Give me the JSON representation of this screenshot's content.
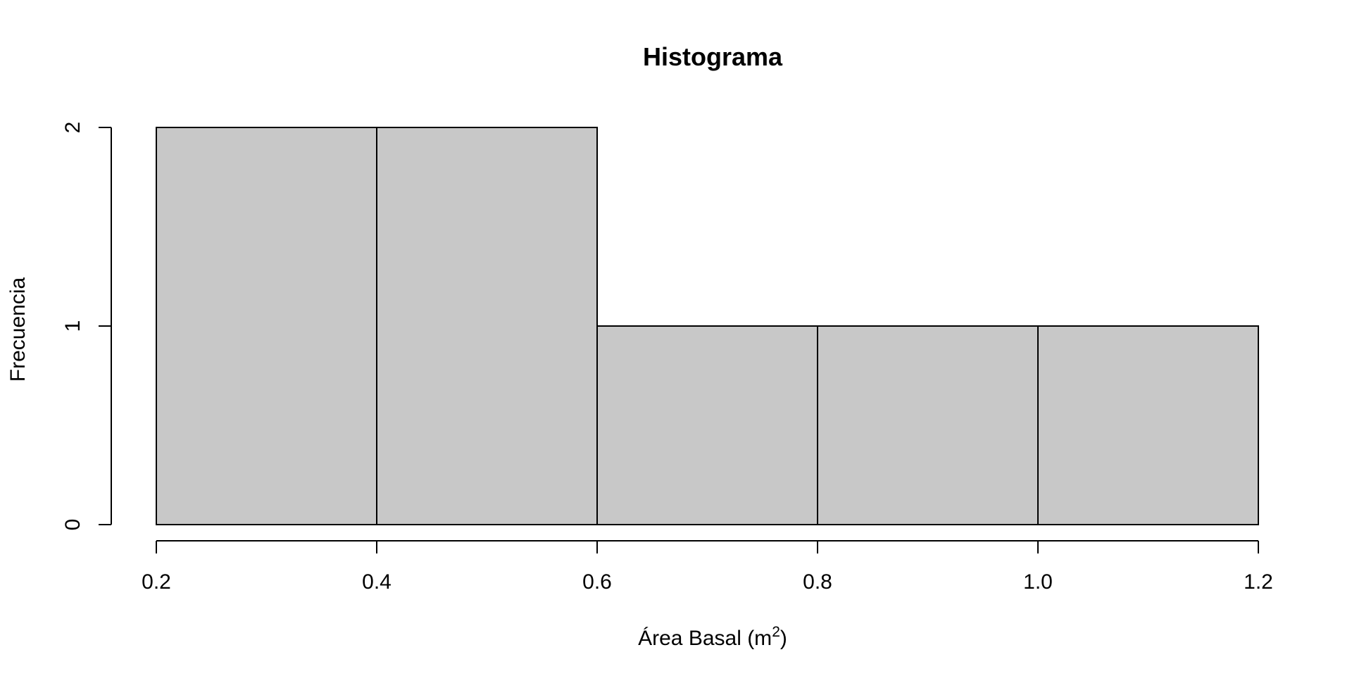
{
  "chart_data": {
    "type": "bar",
    "title": "Histograma",
    "xlabel": {
      "main": "Área Basal (m",
      "superscript": "2",
      "close": ")"
    },
    "ylabel": "Frecuencia",
    "bins": [
      {
        "start": 0.2,
        "end": 0.4,
        "count": 2
      },
      {
        "start": 0.4,
        "end": 0.6,
        "count": 2
      },
      {
        "start": 0.6,
        "end": 0.8,
        "count": 1
      },
      {
        "start": 0.8,
        "end": 1.0,
        "count": 1
      },
      {
        "start": 1.0,
        "end": 1.2,
        "count": 1
      }
    ],
    "xlim": [
      0.2,
      1.2
    ],
    "ylim": [
      0,
      2
    ],
    "x_ticks": [
      {
        "value": 0.2,
        "label": "0.2"
      },
      {
        "value": 0.4,
        "label": "0.4"
      },
      {
        "value": 0.6,
        "label": "0.6"
      },
      {
        "value": 0.8,
        "label": "0.8"
      },
      {
        "value": 1.0,
        "label": "1.0"
      },
      {
        "value": 1.2,
        "label": "1.2"
      }
    ],
    "y_ticks": [
      {
        "value": 0,
        "label": "0"
      },
      {
        "value": 1,
        "label": "1"
      },
      {
        "value": 2,
        "label": "2"
      }
    ],
    "bar_color": "#c8c8c8",
    "grid": false
  }
}
